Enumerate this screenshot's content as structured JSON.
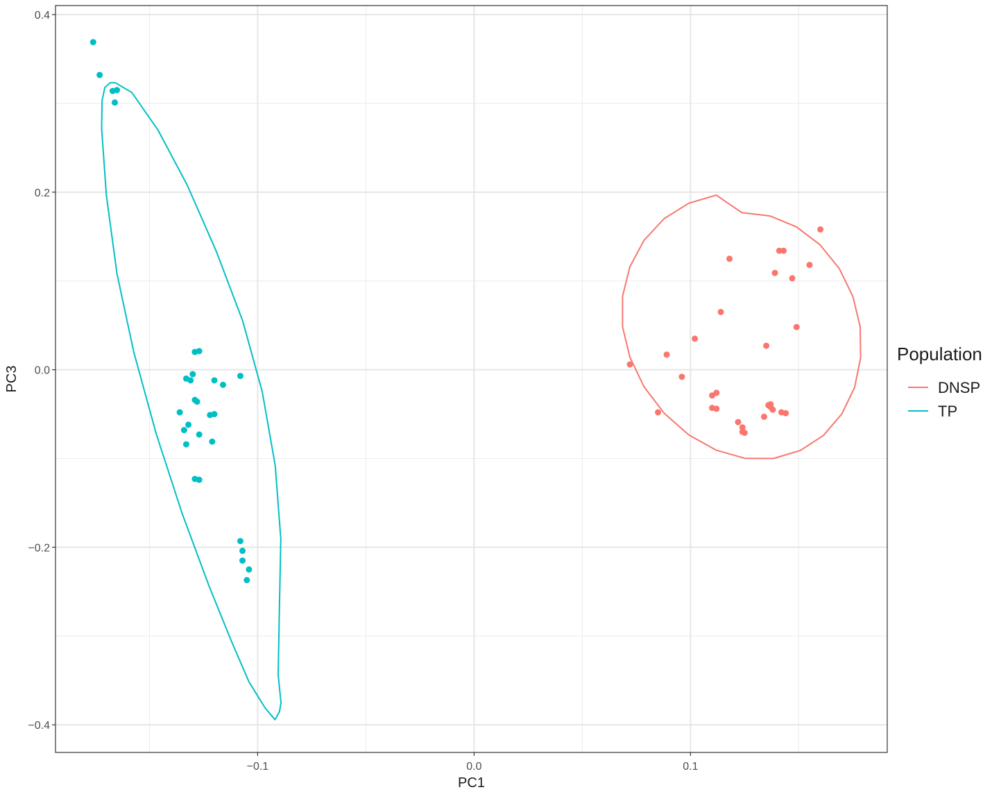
{
  "chart_data": {
    "type": "scatter",
    "title": "",
    "xlabel": "PC1",
    "ylabel": "PC3",
    "xlim": [
      -0.1934,
      0.1909
    ],
    "ylim": [
      -0.4311,
      0.4102
    ],
    "x_ticks": [
      -0.1,
      0.0,
      0.1
    ],
    "x_tick_labels": [
      "−0.1",
      "0.0",
      "0.1"
    ],
    "y_ticks": [
      -0.4,
      -0.2,
      0.0,
      0.2,
      0.4
    ],
    "y_tick_labels": [
      "−0.4",
      "−0.2",
      "0.0",
      "0.2",
      "0.4"
    ],
    "x_minor": [
      -0.15,
      -0.05,
      0.05,
      0.15
    ],
    "y_minor": [
      -0.3,
      -0.1,
      0.1,
      0.3
    ],
    "grid": true,
    "legend": {
      "title": "Population",
      "position": "right"
    },
    "series": [
      {
        "name": "DNSP",
        "color": "#F8766D",
        "points": [
          [
            0.072,
            0.006
          ],
          [
            0.085,
            -0.048
          ],
          [
            0.089,
            0.017
          ],
          [
            0.096,
            -0.008
          ],
          [
            0.102,
            0.035
          ],
          [
            0.11,
            -0.029
          ],
          [
            0.11,
            -0.043
          ],
          [
            0.112,
            -0.026
          ],
          [
            0.112,
            -0.044
          ],
          [
            0.114,
            0.065
          ],
          [
            0.118,
            0.125
          ],
          [
            0.122,
            -0.059
          ],
          [
            0.124,
            -0.065
          ],
          [
            0.124,
            -0.07
          ],
          [
            0.125,
            -0.071
          ],
          [
            0.134,
            -0.053
          ],
          [
            0.135,
            0.027
          ],
          [
            0.136,
            -0.04
          ],
          [
            0.137,
            -0.039
          ],
          [
            0.137,
            -0.042
          ],
          [
            0.138,
            -0.045
          ],
          [
            0.139,
            0.109
          ],
          [
            0.141,
            0.134
          ],
          [
            0.142,
            -0.048
          ],
          [
            0.143,
            0.134
          ],
          [
            0.144,
            -0.049
          ],
          [
            0.147,
            0.103
          ],
          [
            0.149,
            0.048
          ],
          [
            0.155,
            0.118
          ],
          [
            0.16,
            0.158
          ]
        ],
        "ellipse": [
          [
            0.1237,
            0.177
          ],
          [
            0.1367,
            0.1732
          ],
          [
            0.1489,
            0.1609
          ],
          [
            0.1598,
            0.1408
          ],
          [
            0.1687,
            0.1142
          ],
          [
            0.175,
            0.0827
          ],
          [
            0.1784,
            0.0484
          ],
          [
            0.1786,
            0.0134
          ],
          [
            0.1758,
            -0.0201
          ],
          [
            0.1699,
            -0.0498
          ],
          [
            0.1614,
            -0.074
          ],
          [
            0.1507,
            -0.0911
          ],
          [
            0.1383,
            -0.1
          ],
          [
            0.1253,
            -0.0999
          ],
          [
            0.1119,
            -0.0907
          ],
          [
            0.0992,
            -0.0734
          ],
          [
            0.0878,
            -0.0489
          ],
          [
            0.0785,
            -0.0191
          ],
          [
            0.072,
            0.0141
          ],
          [
            0.0686,
            0.0484
          ],
          [
            0.0686,
            0.0827
          ],
          [
            0.072,
            0.1159
          ],
          [
            0.0785,
            0.1457
          ],
          [
            0.0878,
            0.1702
          ],
          [
            0.0992,
            0.1875
          ],
          [
            0.1119,
            0.1967
          ]
        ]
      },
      {
        "name": "TP",
        "color": "#00BFC4",
        "points": [
          [
            -0.176,
            0.369
          ],
          [
            -0.173,
            0.332
          ],
          [
            -0.167,
            0.314
          ],
          [
            -0.165,
            0.315
          ],
          [
            -0.166,
            0.301
          ],
          [
            -0.136,
            -0.048
          ],
          [
            -0.134,
            -0.068
          ],
          [
            -0.133,
            -0.01
          ],
          [
            -0.133,
            -0.084
          ],
          [
            -0.132,
            -0.062
          ],
          [
            -0.131,
            -0.012
          ],
          [
            -0.13,
            -0.005
          ],
          [
            -0.129,
            0.02
          ],
          [
            -0.129,
            -0.034
          ],
          [
            -0.129,
            -0.123
          ],
          [
            -0.128,
            -0.036
          ],
          [
            -0.127,
            0.021
          ],
          [
            -0.127,
            -0.073
          ],
          [
            -0.127,
            -0.124
          ],
          [
            -0.122,
            -0.051
          ],
          [
            -0.121,
            -0.081
          ],
          [
            -0.12,
            -0.012
          ],
          [
            -0.12,
            -0.05
          ],
          [
            -0.116,
            -0.017
          ],
          [
            -0.108,
            -0.007
          ],
          [
            -0.108,
            -0.193
          ],
          [
            -0.107,
            -0.204
          ],
          [
            -0.107,
            -0.215
          ],
          [
            -0.105,
            -0.237
          ],
          [
            -0.104,
            -0.225
          ]
        ],
        "ellipse": [
          [
            -0.1657,
            0.3232
          ],
          [
            -0.1581,
            0.3122
          ],
          [
            -0.146,
            0.2698
          ],
          [
            -0.1325,
            0.2078
          ],
          [
            -0.119,
            0.1328
          ],
          [
            -0.1069,
            0.0548
          ],
          [
            -0.0979,
            -0.0247
          ],
          [
            -0.0919,
            -0.1077
          ],
          [
            -0.0893,
            -0.1908
          ],
          [
            -0.09,
            -0.2757
          ],
          [
            -0.0905,
            -0.3436
          ],
          [
            -0.0892,
            -0.3752
          ],
          [
            -0.0899,
            -0.3852
          ],
          [
            -0.092,
            -0.3942
          ],
          [
            -0.0965,
            -0.3811
          ],
          [
            -0.104,
            -0.3516
          ],
          [
            -0.1122,
            -0.3052
          ],
          [
            -0.1225,
            -0.2434
          ],
          [
            -0.1349,
            -0.1618
          ],
          [
            -0.1469,
            -0.072
          ],
          [
            -0.1572,
            0.0197
          ],
          [
            -0.165,
            0.1082
          ],
          [
            -0.1699,
            0.1968
          ],
          [
            -0.1721,
            0.2718
          ],
          [
            -0.1719,
            0.3029
          ],
          [
            -0.1706,
            0.3178
          ],
          [
            -0.1682,
            0.3232
          ]
        ]
      }
    ]
  }
}
